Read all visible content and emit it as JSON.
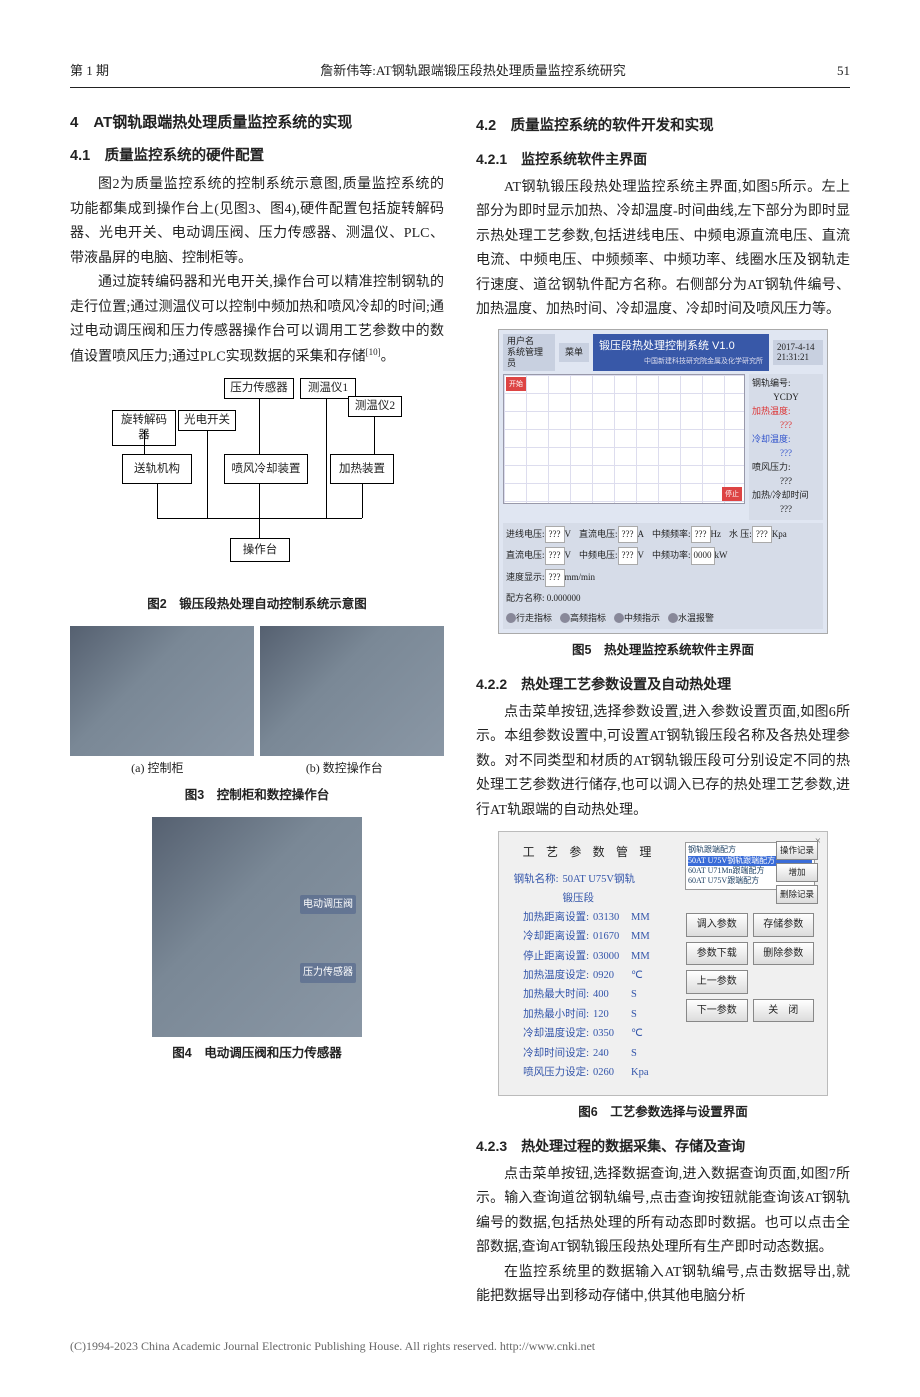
{
  "header": {
    "issue": "第 1 期",
    "running": "詹新伟等:AT钢轨跟端锻压段热处理质量监控系统研究",
    "page": "51"
  },
  "left": {
    "h4": "4　AT钢轨跟端热处理质量监控系统的实现",
    "h41": "4.1　质量监控系统的硬件配置",
    "p1": "图2为质量监控系统的控制系统示意图,质量监控系统的功能都集成到操作台上(见图3、图4),硬件配置包括旋转解码器、光电开关、电动调压阀、压力传感器、测温仪、PLC、带液晶屏的电脑、控制柜等。",
    "p2": "通过旋转编码器和光电开关,操作台可以精准控制钢轨的走行位置;通过测温仪可以控制中频加热和喷风冷却的时间;通过电动调压阀和压力传感器操作台可以调用工艺参数中的数值设置喷风压力;通过PLC实现数据的采集和存储",
    "p2_ref": "[10]",
    "p2_tail": "。",
    "fig2": {
      "b_pressure": "压力传感器",
      "b_temp1": "测温仪1",
      "b_temp2": "测温仪2",
      "b_encoder": "旋转解码器",
      "b_photo": "光电开关",
      "b_feed": "送轨机构",
      "b_spray": "喷风冷却装置",
      "b_heat": "加热装置",
      "b_console": "操作台",
      "caption": "图2　锻压段热处理自动控制系统示意图"
    },
    "fig3": {
      "sub_a": "(a) 控制柜",
      "sub_b": "(b) 数控操作台",
      "caption": "图3　控制柜和数控操作台"
    },
    "fig4": {
      "label_valve": "电动调压阀",
      "label_sensor": "压力传感器",
      "caption": "图4　电动调压阀和压力传感器"
    }
  },
  "right": {
    "h42": "4.2　质量监控系统的软件开发和实现",
    "h421": "4.2.1　监控系统软件主界面",
    "p421": "AT钢轨锻压段热处理监控系统主界面,如图5所示。左上部分为即时显示加热、冷却温度-时间曲线,左下部分为即时显示热处理工艺参数,包括进线电压、中频电源直流电压、直流电流、中频电压、中频频率、中频功率、线圈水压及钢轨走行速度、道岔钢轨件配方名称。右侧部分为AT钢轨件编号、加热温度、加热时间、冷却温度、冷却时间及喷风压力等。",
    "fig5": {
      "user_lab": "用户名",
      "user_val": "系统管理员",
      "menu": "菜单",
      "title": "锻压段热处理控制系统  V1.0",
      "subtitle": "中国新建科技研究院金属及化学研究所",
      "date": "2017-4-14",
      "time": "21:31:21",
      "btn_start": "开始",
      "btn_stop": "停止",
      "side": {
        "id_lab": "钢轨编号:",
        "id_val": "YCDY",
        "heat_t_lab": "加热温度:",
        "heat_t_val": "???",
        "cool_t_lab": "冷却温度:",
        "cool_t_val": "???",
        "wind_lab": "喷风压力:",
        "wind_val": "???",
        "time_lab": "加热/冷却时间",
        "time_val": "???"
      },
      "bottom": {
        "l1": "进线电压:",
        "v1": "???",
        "u1": "V",
        "l2": "直流电压:",
        "v2": "???",
        "u2": "A",
        "l3": "中频频率:",
        "v3": "???",
        "u3": "Hz",
        "l4": "水   压:",
        "v4": "???",
        "u4": "Kpa",
        "l5": "直流电压:",
        "v5": "???",
        "u5": "V",
        "l6": "中频电压:",
        "v6": "???",
        "u6": "V",
        "l7": "中频功率:",
        "v7": "0000",
        "u7": "kW",
        "l8": "速度显示:",
        "v8": "???",
        "u8": "mm/min",
        "recipe_lab": "配方名称:",
        "recipe_val": "0.000000",
        "lamp1": "行走指标",
        "lamp2": "高频指标",
        "lamp3": "中频指示",
        "lamp4": "水温报警"
      },
      "caption": "图5　热处理监控系统软件主界面"
    },
    "h422": "4.2.2　热处理工艺参数设置及自动热处理",
    "p422": "点击菜单按钮,选择参数设置,进入参数设置页面,如图6所示。本组参数设置中,可设置AT钢轨锻压段名称及各热处理参数。对不同类型和材质的AT钢轨锻压段可分别设定不同的热处理工艺参数进行储存,也可以调入已存的热处理工艺参数,进行AT轨跟端的自动热处理。",
    "fig6": {
      "title": "工 艺 参 数 管 理",
      "list_head": "钢轨跟端配方",
      "list_0": "50AT U75V钢轨跟端配方",
      "list_1": "60AT U71Mn跟端配方",
      "list_2": "60AT U75V跟端配方",
      "rows": [
        {
          "lab": "钢轨名称:",
          "v": "50AT U75V钢轨锻压段",
          "u": ""
        },
        {
          "lab": "加热距离设置:",
          "v": "03130",
          "u": "MM"
        },
        {
          "lab": "冷却距离设置:",
          "v": "01670",
          "u": "MM"
        },
        {
          "lab": "停止距离设置:",
          "v": "03000",
          "u": "MM"
        },
        {
          "lab": "加热温度设定:",
          "v": "0920",
          "u": "℃"
        },
        {
          "lab": "加热最大时间:",
          "v": "400",
          "u": "S"
        },
        {
          "lab": "加热最小时间:",
          "v": "120",
          "u": "S"
        },
        {
          "lab": "冷却温度设定:",
          "v": "0350",
          "u": "℃"
        },
        {
          "lab": "冷却时间设定:",
          "v": "240",
          "u": "S"
        },
        {
          "lab": "喷风压力设定:",
          "v": "0260",
          "u": "Kpa"
        }
      ],
      "btns": {
        "load": "调入参数",
        "save": "存储参数",
        "download": "参数下载",
        "delete": "删除参数",
        "prev": "上一参数",
        "next": "下一参数",
        "close": "关　闭",
        "c1": "操作记录",
        "c2": "增加",
        "c3": "删除记录"
      },
      "caption": "图6　工艺参数选择与设置界面"
    },
    "h423": "4.2.3　热处理过程的数据采集、存储及查询",
    "p423a": "点击菜单按钮,选择数据查询,进入数据查询页面,如图7所示。输入查询道岔钢轨编号,点击查询按钮就能查询该AT钢轨编号的数据,包括热处理的所有动态即时数据。也可以点击全部数据,查询AT钢轨锻压段热处理所有生产即时动态数据。",
    "p423b": "在监控系统里的数据输入AT钢轨编号,点击数据导出,就能把数据导出到移动存储中,供其他电脑分析"
  },
  "footer": "(C)1994-2023 China Academic Journal Electronic Publishing House. All rights reserved.    http://www.cnki.net"
}
